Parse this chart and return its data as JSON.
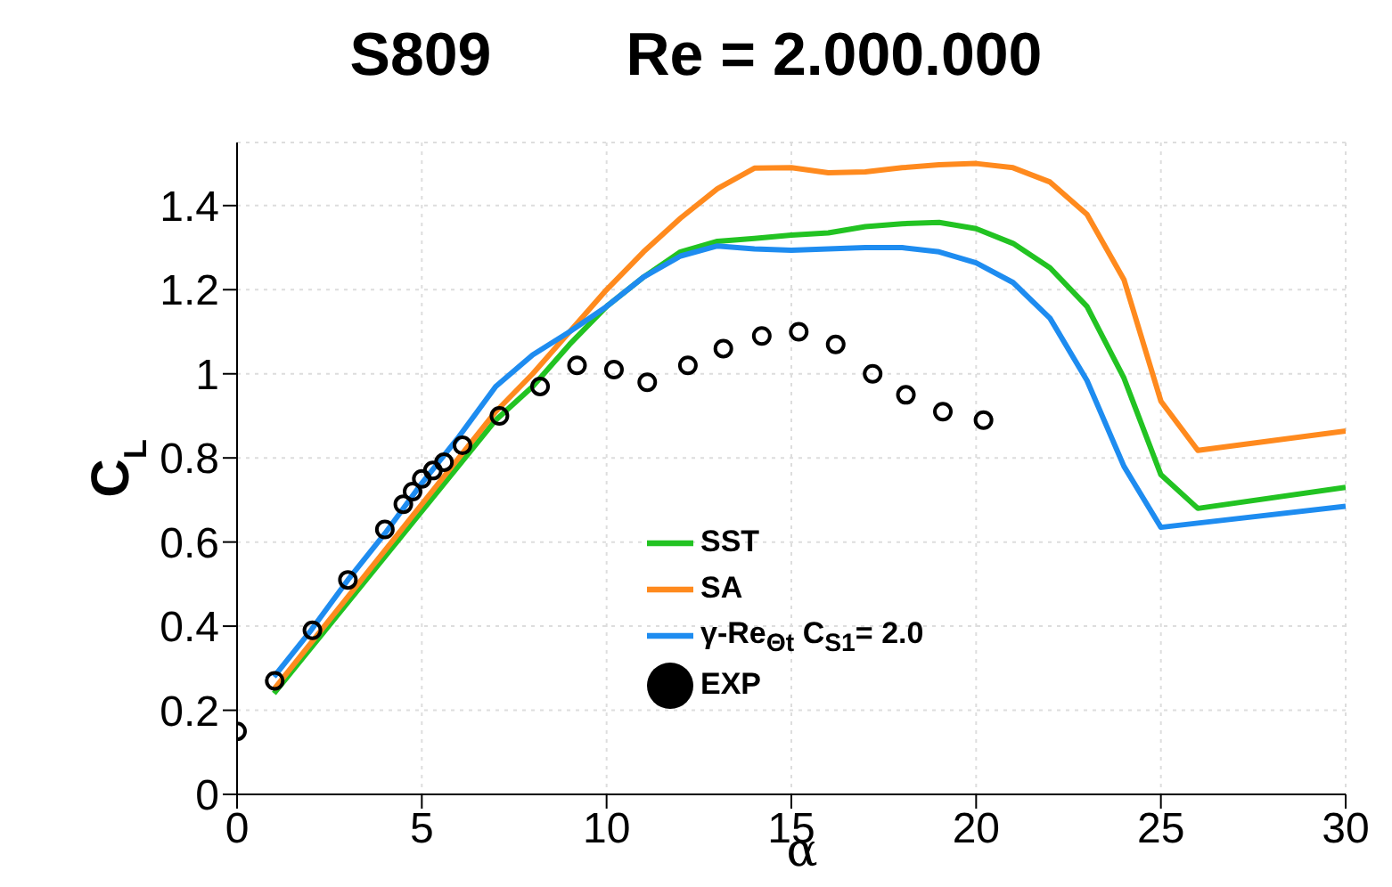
{
  "chart_data": {
    "type": "line",
    "title": "S809        Re = 2.000.000",
    "xlabel": "α",
    "ylabel": "C$_{L}$",
    "xlim": [
      0,
      30
    ],
    "xticks": [
      0,
      5,
      10,
      15,
      20,
      25,
      30
    ],
    "ylim": [
      0,
      1.55
    ],
    "yticks": [
      0,
      0.2,
      0.4,
      0.6,
      0.8,
      1,
      1.2,
      1.4
    ],
    "grid": true,
    "legend": "bottom",
    "line_style": "solid",
    "series": [
      {
        "name": "SST",
        "marker": "none",
        "color": "#22c322",
        "x": [
          1,
          7,
          8,
          9,
          10,
          11,
          12,
          13,
          14,
          15,
          16,
          17,
          18,
          19,
          20,
          21,
          22,
          23,
          24,
          25,
          26,
          30
        ],
        "values": [
          0.24,
          0.89,
          0.97,
          1.07,
          1.16,
          1.23,
          1.29,
          1.315,
          1.322,
          1.33,
          1.335,
          1.35,
          1.357,
          1.36,
          1.345,
          1.31,
          1.252,
          1.16,
          0.99,
          0.76,
          0.68,
          0.73
        ]
      },
      {
        "name": "SA",
        "marker": "none",
        "color": "#ff8a1e",
        "x": [
          1,
          7,
          8,
          9,
          10,
          11,
          12,
          13,
          14,
          15,
          16,
          17,
          18,
          19,
          20,
          21,
          22,
          23,
          24,
          25,
          26,
          30
        ],
        "values": [
          0.25,
          0.91,
          1.0,
          1.1,
          1.2,
          1.29,
          1.37,
          1.44,
          1.489,
          1.49,
          1.478,
          1.48,
          1.49,
          1.497,
          1.5,
          1.49,
          1.456,
          1.379,
          1.224,
          0.935,
          0.818,
          0.864
        ]
      },
      {
        "name": "γ-Re$_{Θt}$ C$_{S1}$= 2.0",
        "marker": "none",
        "color": "#1e8cf0",
        "x": [
          1,
          2,
          3,
          4,
          5,
          6,
          7,
          8,
          9,
          10,
          11,
          12,
          13,
          14,
          15,
          16,
          17,
          18,
          19,
          20,
          21,
          22,
          23,
          24,
          25,
          26,
          30
        ],
        "values": [
          0.28,
          0.39,
          0.51,
          0.62,
          0.74,
          0.85,
          0.97,
          1.045,
          1.1,
          1.16,
          1.23,
          1.28,
          1.304,
          1.297,
          1.294,
          1.297,
          1.3,
          1.3,
          1.29,
          1.264,
          1.217,
          1.132,
          0.984,
          0.78,
          0.635,
          0.645,
          0.685
        ]
      },
      {
        "name": "EXP",
        "type": "scatter",
        "marker": "circle",
        "color": "#000000",
        "x": [
          0,
          1.02,
          2.04,
          3.0,
          4.0,
          4.5,
          4.75,
          5.0,
          5.3,
          5.6,
          6.1,
          7.1,
          8.2,
          9.2,
          10.2,
          11.1,
          12.2,
          13.16,
          14.2,
          15.2,
          16.2,
          17.2,
          18.1,
          19.1,
          20.2
        ],
        "values": [
          0.15,
          0.27,
          0.39,
          0.51,
          0.63,
          0.69,
          0.72,
          0.75,
          0.77,
          0.79,
          0.83,
          0.9,
          0.97,
          1.02,
          1.01,
          0.98,
          1.02,
          1.06,
          1.09,
          1.1,
          1.07,
          1.0,
          0.95,
          0.91,
          0.89
        ]
      }
    ]
  }
}
